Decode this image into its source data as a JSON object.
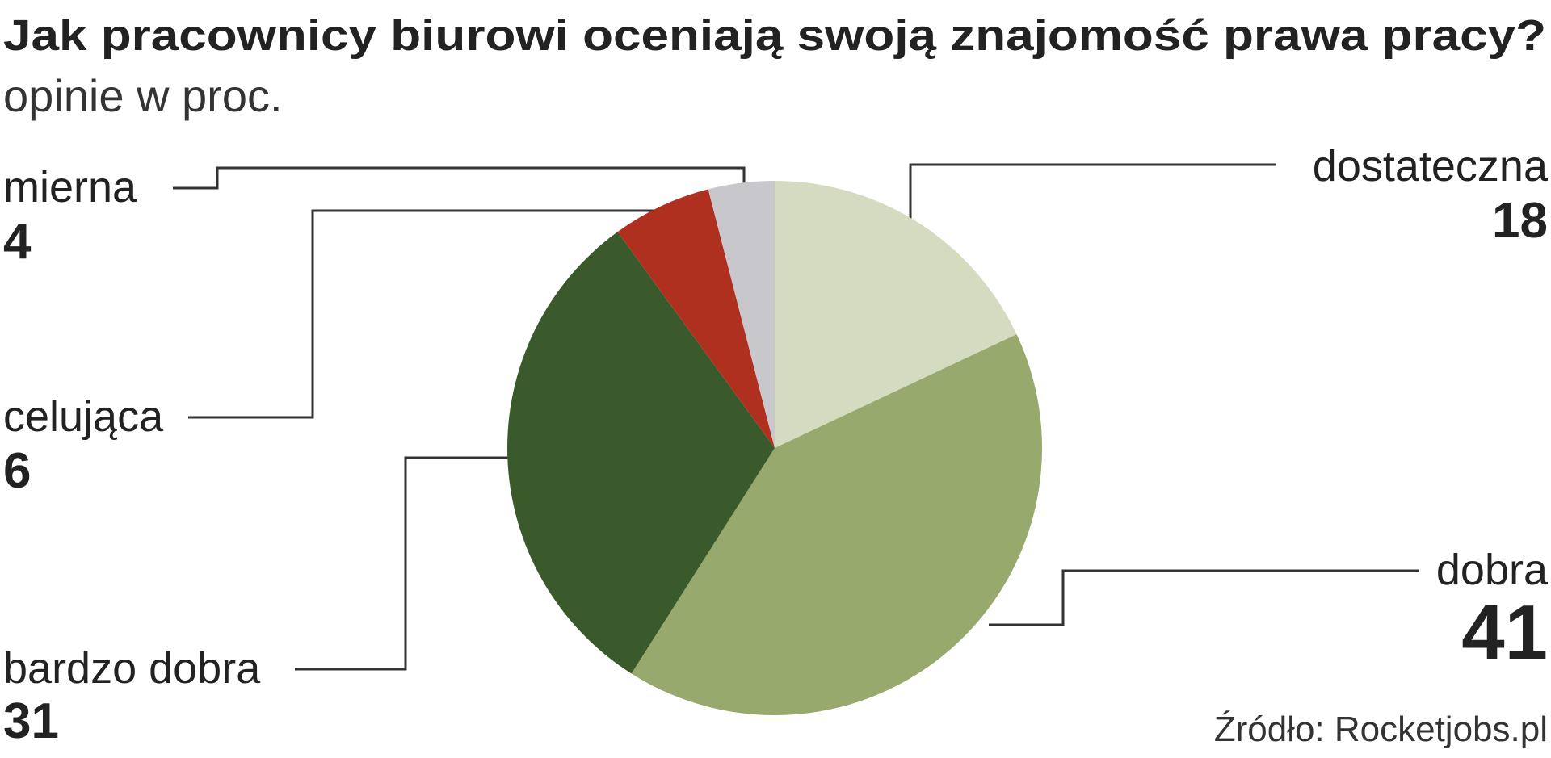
{
  "chart_data": {
    "type": "pie",
    "title": "Jak pracownicy biurowi oceniają swoją znajomość prawa pracy?",
    "subtitle": "opinie w proc.",
    "categories": [
      "dostateczna",
      "dobra",
      "bardzo dobra",
      "celująca",
      "mierna"
    ],
    "values": [
      18,
      41,
      31,
      6,
      4
    ],
    "colors": [
      "#d5dbc0",
      "#98a96e",
      "#3a5a2b",
      "#b03020",
      "#c8c8cc"
    ],
    "source": "Źródło: Rocketjobs.pl"
  }
}
